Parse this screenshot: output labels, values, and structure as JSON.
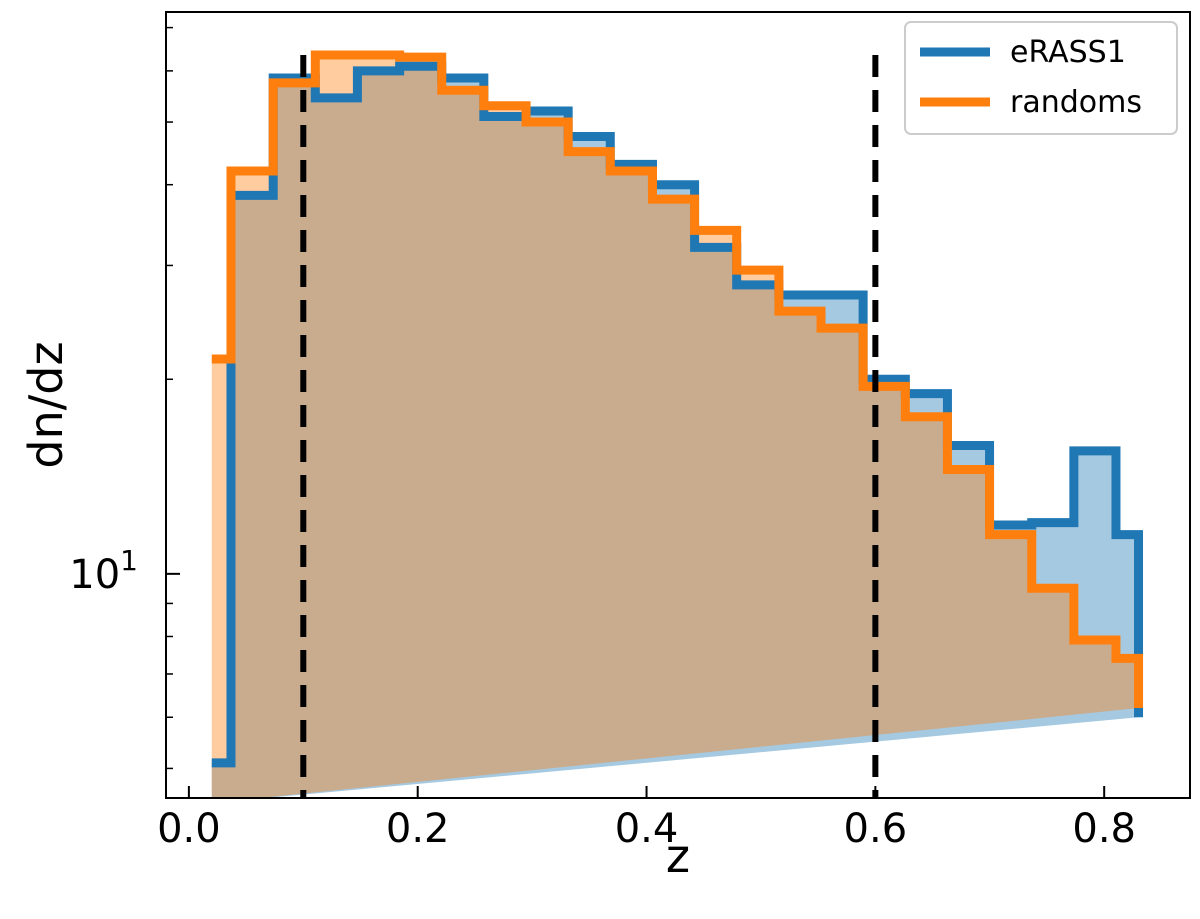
{
  "chart_data": {
    "type": "histogram-step",
    "xlabel": "z",
    "ylabel": "dn/dz",
    "xlim": [
      -0.02,
      0.875
    ],
    "ylim": [
      4.5,
      74
    ],
    "yscale": "log",
    "x_ticks": [
      0.0,
      0.2,
      0.4,
      0.6,
      0.8
    ],
    "x_tick_labels": [
      "0.0",
      "0.2",
      "0.4",
      "0.6",
      "0.8"
    ],
    "y_major_tick_labels": [
      {
        "value": 10,
        "base": "10",
        "exp": "1"
      }
    ],
    "y_minor_ticks": [
      5,
      6,
      7,
      8,
      9,
      20,
      30,
      40,
      50,
      60,
      70
    ],
    "bin_edges": [
      0.02,
      0.0368,
      0.0737,
      0.1105,
      0.1473,
      0.1842,
      0.221,
      0.2578,
      0.2947,
      0.3315,
      0.3683,
      0.4052,
      0.442,
      0.4788,
      0.5157,
      0.5525,
      0.5893,
      0.6262,
      0.663,
      0.6998,
      0.7367,
      0.7735,
      0.8103,
      0.83
    ],
    "series": [
      {
        "name": "eRASS1",
        "color": "#1f77b4",
        "fill": "#a6c8e0",
        "values": [
          5.1,
          38.5,
          58.5,
          54.5,
          60.0,
          61.0,
          58.5,
          51.0,
          52.0,
          47.5,
          43.0,
          40.0,
          32.0,
          28.0,
          27.0,
          27.0,
          20.0,
          19.0,
          15.8,
          11.9,
          12.0,
          15.5,
          11.5,
          6.0
        ]
      },
      {
        "name": "randoms",
        "color": "#ff7f0e",
        "fill": "#ffc89a",
        "values": [
          21.5,
          42.0,
          57.5,
          63.5,
          63.5,
          63.0,
          56.0,
          53.0,
          50.0,
          45.0,
          42.0,
          38.0,
          34.0,
          29.5,
          25.5,
          24.0,
          19.5,
          17.5,
          14.5,
          11.5,
          9.5,
          7.9,
          7.4,
          6.2
        ]
      }
    ],
    "vlines": [
      0.1,
      0.6
    ],
    "legend": {
      "position": "top-right",
      "entries": [
        "eRASS1",
        "randoms"
      ]
    },
    "grid": false
  }
}
